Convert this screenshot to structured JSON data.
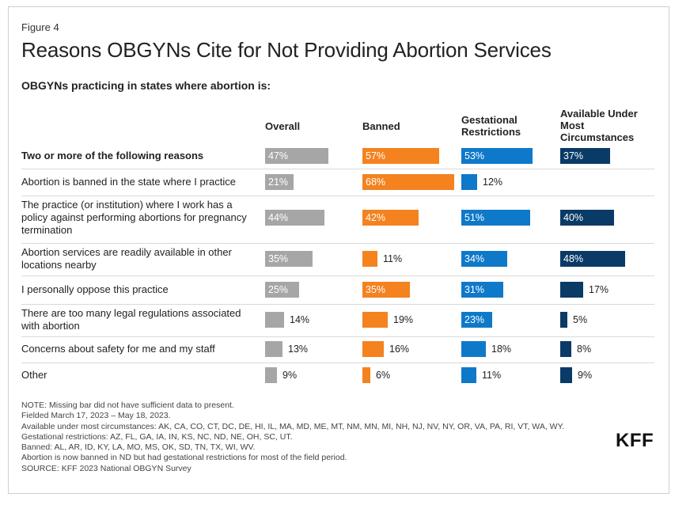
{
  "figure_label": "Figure 4",
  "title": "Reasons OBGYNs Cite for Not Providing Abortion Services",
  "subtitle": "OBGYNs practicing in states where abortion is:",
  "logo": "KFF",
  "colors": {
    "Overall": "#a6a6a6",
    "Banned": "#f4821f",
    "Gestational Restrictions": "#0f79c9",
    "Available Under Most Circumstances": "#0a3a66"
  },
  "chart_data": {
    "type": "bar",
    "orientation": "horizontal",
    "grid": false,
    "legend": "column headers",
    "categories": [
      "Two or more of the following reasons",
      "Abortion is banned in the state where I practice",
      "The practice (or institution) where I work has a policy against performing abortions for pregnancy termination",
      "Abortion services are readily available in other locations nearby",
      "I personally oppose this practice",
      "There are too many legal regulations associated with abortion",
      "Concerns about safety for me and my staff",
      "Other"
    ],
    "series": [
      {
        "name": "Overall",
        "values": [
          47,
          21,
          44,
          35,
          25,
          14,
          13,
          9
        ]
      },
      {
        "name": "Banned",
        "values": [
          57,
          68,
          42,
          11,
          35,
          19,
          16,
          6
        ]
      },
      {
        "name": "Gestational Restrictions",
        "values": [
          53,
          12,
          51,
          34,
          31,
          23,
          18,
          11
        ]
      },
      {
        "name": "Available Under Most Circumstances",
        "values": [
          37,
          null,
          40,
          48,
          17,
          5,
          8,
          9
        ]
      }
    ],
    "value_suffix": "%",
    "xlim": [
      0,
      100
    ]
  },
  "notes": [
    "NOTE: Missing bar did not have sufficient data to present.",
    "Fielded March 17, 2023 – May 18, 2023.",
    "Available under most circumstances: AK, CA, CO, CT, DC, DE, HI, IL, MA, MD, ME, MT, NM, MN, MI, NH, NJ, NV, NY, OR, VA, PA, RI, VT, WA, WY.",
    "Gestational restrictions: AZ, FL, GA, IA, IN, KS, NC, ND, NE, OH, SC, UT.",
    "Banned: AL, AR, ID, KY, LA, MO, MS, OK, SD, TN, TX, WI, WV.",
    "Abortion is now banned in ND but had gestational restrictions for most of the field period.",
    "SOURCE: KFF 2023 National OBGYN Survey"
  ]
}
